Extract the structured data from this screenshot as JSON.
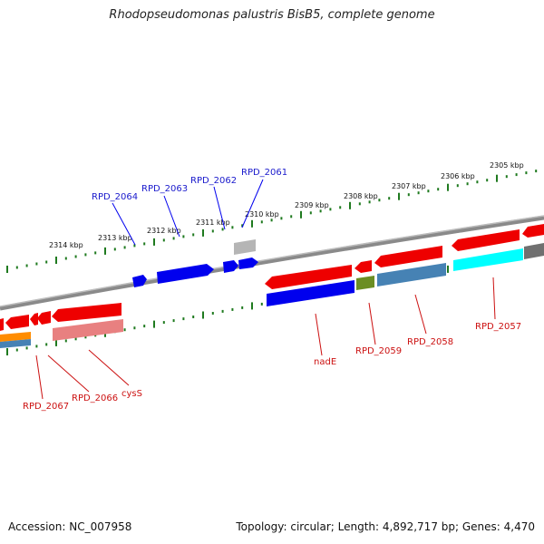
{
  "header": {
    "title": "Rhodopseudomonas palustris BisB5, complete genome"
  },
  "footer": {
    "accession": "Accession: NC_007958",
    "summary": "Topology: circular; Length: 4,892,717 bp; Genes: 4,470"
  },
  "scale": {
    "top_kbp_labels": [
      "2314 kbp",
      "2313 kbp",
      "2312 kbp",
      "2311 kbp",
      "2310 kbp",
      "2309 kbp",
      "2308 kbp",
      "2307 kbp",
      "2306 kbp",
      "2305 kbp"
    ]
  },
  "genes_top": [
    {
      "name": "RPD_2064",
      "color": "#0000ee"
    },
    {
      "name": "RPD_2063",
      "color": "#0000ee"
    },
    {
      "name": "RPD_2062",
      "color": "#0000ee"
    },
    {
      "name": "RPD_2061",
      "color": "#0000ee"
    }
  ],
  "genes_bottom": [
    {
      "name": "RPD_2067",
      "color": "#ee0000"
    },
    {
      "name": "RPD_2066",
      "color": "#ee0000"
    },
    {
      "name": "cysS",
      "color": "#ee0000"
    },
    {
      "name": "nadE",
      "color": "#ee0000"
    },
    {
      "name": "RPD_2059",
      "color": "#ee0000"
    },
    {
      "name": "RPD_2058",
      "color": "#ee0000"
    },
    {
      "name": "RPD_2057",
      "color": "#ee0000"
    }
  ],
  "colors": {
    "backbone": "#808080",
    "forward_gene": "#0000ee",
    "reverse_gene": "#ee0000",
    "tick": "#1f7a1f",
    "pseudo": "#bbbbbb",
    "cds_blue": "#0000ee",
    "cds_pink": "#e88080",
    "cds_steel": "#4682b4",
    "cds_olive": "#6b8e23",
    "cds_cyan": "#00ffff",
    "cds_orange": "#ff8c00",
    "cds_gray": "#707070"
  }
}
